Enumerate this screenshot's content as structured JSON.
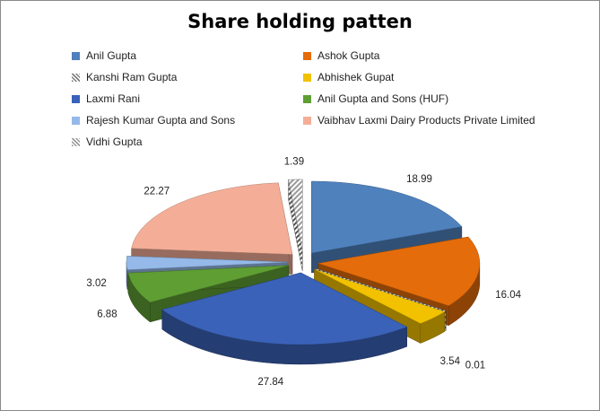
{
  "chart_data": {
    "type": "pie",
    "style": "3d-exploded",
    "title": "Share holding patten",
    "legend_placement": "top",
    "slices": [
      {
        "name": "Anil Gupta",
        "value": 18.99,
        "label": "18.99",
        "color": "#4F81BD",
        "pattern": "solid"
      },
      {
        "name": "Ashok Gupta",
        "value": 16.04,
        "label": "16.04",
        "color": "#E46C0A",
        "pattern": "solid"
      },
      {
        "name": "Kanshi Ram Gupta",
        "value": 0.01,
        "label": "0.01",
        "color": "#7F7F7F",
        "pattern": "stripe"
      },
      {
        "name": "Abhishek Gupat",
        "value": 3.54,
        "label": "3.54",
        "color": "#F2C200",
        "pattern": "solid"
      },
      {
        "name": "Laxmi Rani",
        "value": 27.84,
        "label": "27.84",
        "color": "#3A62B8",
        "pattern": "solid"
      },
      {
        "name": "Anil Gupta and Sons (HUF)",
        "value": 6.88,
        "label": "6.88",
        "color": "#5F9E33",
        "pattern": "solid"
      },
      {
        "name": "Rajesh Kumar Gupta and Sons",
        "value": 3.02,
        "label": "3.02",
        "color": "#95B9E8",
        "pattern": "solid"
      },
      {
        "name": "Vaibhav Laxmi Dairy Products Private Limited",
        "value": 22.27,
        "label": "22.27",
        "color": "#F4AE98",
        "pattern": "solid"
      },
      {
        "name": "Vidhi Gupta",
        "value": 1.39,
        "label": "1.39",
        "color": "#9A9A9A",
        "pattern": "stripe"
      }
    ]
  }
}
